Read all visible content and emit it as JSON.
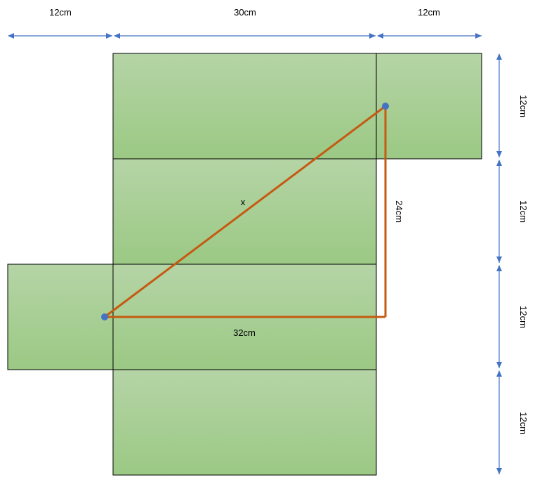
{
  "labels": {
    "top_left_width": "12cm",
    "top_middle_width": "30cm",
    "top_right_width": "12cm",
    "right_height_1": "12cm",
    "right_height_2": "12cm",
    "right_height_3": "12cm",
    "right_height_4": "12cm",
    "vertical_leg": "24cm",
    "horizontal_leg": "32cm",
    "hypotenuse": "x"
  },
  "colors": {
    "face_top": "#b5d4a6",
    "face_bottom": "#9bc984",
    "edge": "#000000",
    "triangle": "#c55a11",
    "point": "#4472c4",
    "dimension_arrow": "#4472c4"
  }
}
